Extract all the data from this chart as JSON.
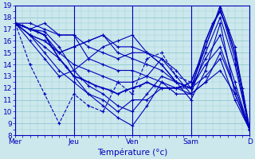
{
  "xlabel": "Température (°c)",
  "xlim": [
    0,
    96
  ],
  "ylim": [
    8,
    19
  ],
  "yticks": [
    8,
    9,
    10,
    11,
    12,
    13,
    14,
    15,
    16,
    17,
    18,
    19
  ],
  "xtick_positions": [
    0,
    24,
    48,
    72,
    96
  ],
  "xtick_labels": [
    "Mer",
    "Jeu",
    "Ven",
    "Sam",
    "D"
  ],
  "background_color": "#cce8ec",
  "grid_color": "#99ccd4",
  "line_color": "#0000bb",
  "series": [
    {
      "x": [
        0,
        3,
        6,
        9,
        12,
        15,
        18,
        21,
        24,
        27,
        30,
        33,
        36,
        39,
        42,
        45,
        48,
        51,
        54,
        57,
        60,
        63,
        66,
        69,
        72,
        75,
        78,
        81,
        84,
        87,
        90,
        93,
        96
      ],
      "y": [
        17.5,
        17.3,
        17.0,
        16.8,
        16.5,
        15.5,
        14.5,
        13.8,
        13.0,
        12.8,
        12.5,
        12.2,
        12.0,
        11.8,
        11.5,
        11.8,
        12.0,
        12.2,
        12.5,
        12.2,
        12.0,
        12.0,
        12.0,
        12.2,
        12.5,
        14.0,
        16.0,
        17.5,
        18.5,
        17.0,
        15.0,
        12.0,
        8.5
      ],
      "lw": 1.2,
      "ls": "-",
      "dashed": false
    },
    {
      "x": [
        0,
        6,
        12,
        18,
        24,
        30,
        36,
        42,
        48,
        54,
        60,
        66,
        72,
        78,
        84,
        90,
        96
      ],
      "y": [
        17.5,
        17.0,
        16.8,
        15.5,
        13.5,
        12.2,
        11.5,
        10.5,
        10.0,
        11.5,
        13.0,
        12.5,
        12.0,
        15.5,
        18.8,
        14.5,
        8.5
      ],
      "lw": 0.8,
      "ls": "-",
      "dashed": false
    },
    {
      "x": [
        0,
        6,
        12,
        18,
        24,
        30,
        36,
        42,
        48,
        54,
        60,
        66,
        72,
        78,
        84,
        90,
        96
      ],
      "y": [
        17.5,
        16.5,
        15.5,
        14.5,
        13.0,
        11.5,
        10.5,
        9.5,
        8.8,
        10.5,
        12.5,
        12.0,
        11.5,
        15.0,
        18.0,
        14.0,
        8.5
      ],
      "lw": 0.8,
      "ls": "-",
      "dashed": false
    },
    {
      "x": [
        0,
        6,
        12,
        18,
        24,
        30,
        36,
        42,
        48,
        54,
        60,
        66,
        72,
        78,
        84,
        90,
        96
      ],
      "y": [
        17.5,
        17.0,
        16.5,
        15.0,
        14.0,
        13.5,
        13.0,
        12.5,
        12.5,
        13.0,
        14.5,
        13.5,
        12.0,
        15.5,
        19.0,
        15.5,
        8.5
      ],
      "lw": 0.8,
      "ls": "-",
      "dashed": false
    },
    {
      "x": [
        0,
        6,
        12,
        18,
        24,
        30,
        36,
        42,
        48,
        54,
        60,
        66,
        72,
        78,
        84,
        90,
        96
      ],
      "y": [
        17.5,
        16.5,
        16.0,
        15.0,
        15.5,
        16.0,
        16.5,
        15.5,
        15.5,
        15.0,
        14.0,
        12.5,
        11.0,
        13.5,
        17.5,
        11.5,
        8.5
      ],
      "lw": 0.8,
      "ls": "-",
      "dashed": false
    },
    {
      "x": [
        0,
        6,
        12,
        18,
        24,
        30,
        36,
        42,
        48,
        54,
        60,
        66,
        72,
        78,
        84,
        90,
        96
      ],
      "y": [
        17.5,
        16.5,
        16.0,
        15.0,
        15.5,
        16.0,
        16.5,
        15.0,
        14.5,
        14.0,
        13.5,
        12.5,
        12.0,
        14.0,
        15.5,
        12.0,
        8.5
      ],
      "lw": 0.8,
      "ls": "-",
      "dashed": false
    },
    {
      "x": [
        0,
        6,
        12,
        18,
        24,
        30,
        36,
        42,
        48,
        54,
        60,
        66,
        72,
        78,
        84,
        90,
        96
      ],
      "y": [
        17.5,
        17.0,
        17.5,
        16.5,
        16.5,
        15.5,
        15.0,
        14.5,
        15.0,
        15.0,
        14.0,
        12.5,
        12.0,
        14.5,
        16.5,
        12.5,
        8.5
      ],
      "lw": 0.8,
      "ls": "-",
      "dashed": false
    },
    {
      "x": [
        0,
        6,
        12,
        18,
        24,
        30,
        36,
        42,
        48,
        54,
        60,
        66,
        72,
        78,
        84,
        90,
        96
      ],
      "y": [
        17.5,
        17.5,
        17.0,
        16.5,
        16.5,
        14.5,
        14.0,
        13.5,
        13.5,
        13.0,
        12.5,
        11.5,
        11.5,
        12.5,
        13.5,
        11.5,
        8.5
      ],
      "lw": 0.8,
      "ls": "-",
      "dashed": false
    },
    {
      "x": [
        0,
        6,
        12,
        18,
        24,
        30,
        36,
        42,
        48,
        54,
        60,
        66,
        72,
        78,
        84,
        90,
        96
      ],
      "y": [
        17.5,
        16.5,
        15.0,
        13.5,
        12.5,
        11.5,
        11.0,
        10.0,
        11.0,
        11.0,
        12.0,
        12.0,
        12.0,
        13.0,
        14.5,
        11.0,
        8.5
      ],
      "lw": 0.8,
      "ls": "-",
      "dashed": false
    },
    {
      "x": [
        0,
        6,
        12,
        18,
        24,
        30,
        36,
        42,
        48,
        54,
        60,
        66,
        72
      ],
      "y": [
        17.5,
        14.0,
        11.5,
        9.0,
        11.5,
        10.5,
        10.0,
        12.5,
        11.5,
        14.5,
        15.0,
        13.0,
        12.5
      ],
      "lw": 0.8,
      "ls": "--",
      "dashed": true
    },
    {
      "x": [
        0,
        6,
        12,
        18,
        24,
        30,
        36,
        42,
        48,
        54,
        60,
        66,
        72,
        78,
        84,
        90,
        96
      ],
      "y": [
        17.5,
        16.0,
        14.5,
        13.0,
        13.5,
        14.5,
        15.5,
        16.0,
        16.5,
        15.0,
        14.5,
        13.0,
        11.5,
        12.5,
        15.0,
        12.0,
        8.5
      ],
      "lw": 0.8,
      "ls": "-",
      "dashed": false
    }
  ]
}
